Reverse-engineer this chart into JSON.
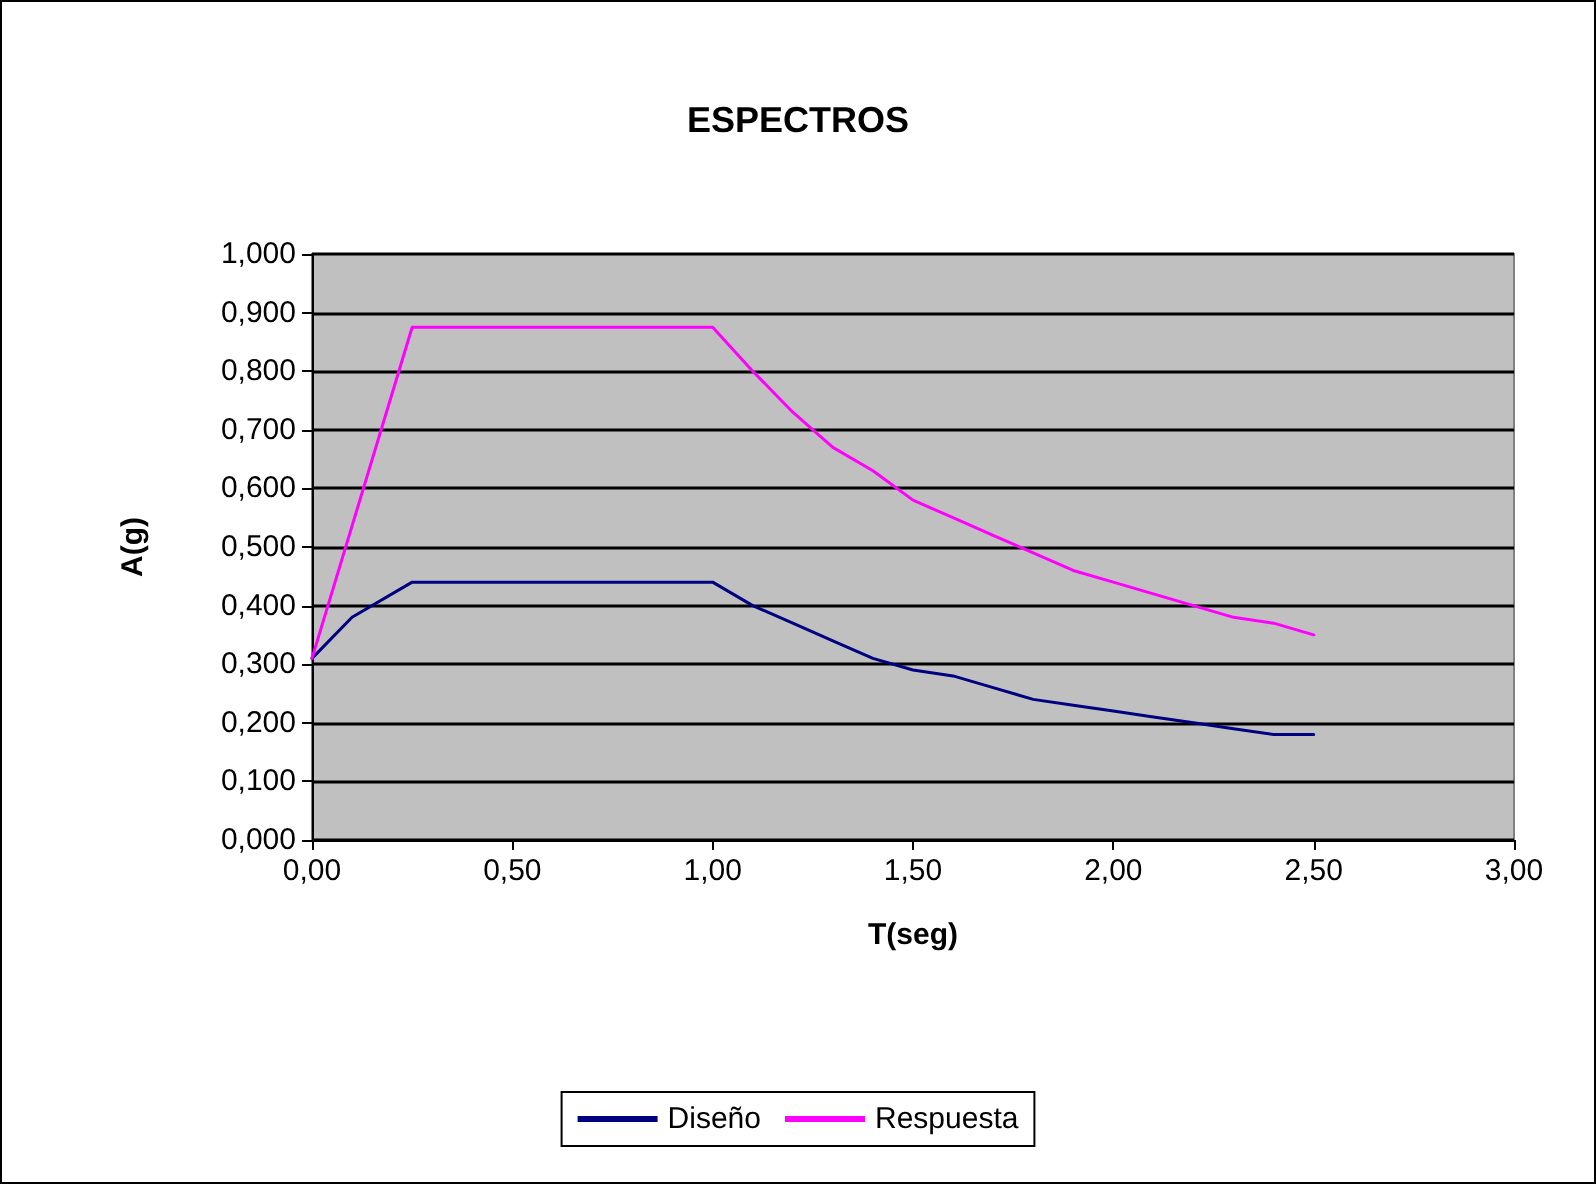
{
  "chart_data": {
    "type": "line",
    "title": "ESPECTROS",
    "xlabel": "T(seg)",
    "ylabel": "A(g)",
    "x": [
      0,
      0.1,
      0.25,
      1.0,
      1.1,
      1.2,
      1.3,
      1.4,
      1.5,
      1.6,
      1.7,
      1.8,
      1.9,
      2.0,
      2.1,
      2.2,
      2.3,
      2.4,
      2.5
    ],
    "series": [
      {
        "name": "Diseño",
        "color": "#000080",
        "values": [
          0.31,
          0.38,
          0.44,
          0.44,
          0.4,
          0.37,
          0.34,
          0.31,
          0.29,
          0.28,
          0.26,
          0.24,
          0.23,
          0.22,
          0.21,
          0.2,
          0.19,
          0.18,
          0.18
        ]
      },
      {
        "name": "Respuesta",
        "color": "#ff00ff",
        "x": [
          0,
          0.25,
          1.0,
          1.1,
          1.2,
          1.3,
          1.4,
          1.5,
          1.6,
          1.7,
          1.8,
          1.9,
          2.0,
          2.1,
          2.2,
          2.3,
          2.4,
          2.5
        ],
        "values": [
          0.31,
          0.875,
          0.875,
          0.8,
          0.73,
          0.67,
          0.63,
          0.58,
          0.55,
          0.52,
          0.49,
          0.46,
          0.44,
          0.42,
          0.4,
          0.38,
          0.37,
          0.35
        ]
      }
    ],
    "xlim": [
      0,
      3
    ],
    "xticks": [
      {
        "value": 0,
        "label": "0,00"
      },
      {
        "value": 0.5,
        "label": "0,50"
      },
      {
        "value": 1,
        "label": "1,00"
      },
      {
        "value": 1.5,
        "label": "1,50"
      },
      {
        "value": 2,
        "label": "2,00"
      },
      {
        "value": 2.5,
        "label": "2,50"
      },
      {
        "value": 3,
        "label": "3,00"
      }
    ],
    "ylim": [
      0,
      1
    ],
    "yticks": [
      {
        "value": 0,
        "label": "0,000"
      },
      {
        "value": 0.1,
        "label": "0,100"
      },
      {
        "value": 0.2,
        "label": "0,200"
      },
      {
        "value": 0.3,
        "label": "0,300"
      },
      {
        "value": 0.4,
        "label": "0,400"
      },
      {
        "value": 0.5,
        "label": "0,500"
      },
      {
        "value": 0.6,
        "label": "0,600"
      },
      {
        "value": 0.7,
        "label": "0,700"
      },
      {
        "value": 0.8,
        "label": "0,800"
      },
      {
        "value": 0.9,
        "label": "0,900"
      },
      {
        "value": 1,
        "label": "1,000"
      }
    ],
    "grid": "y",
    "legend": "bottom",
    "marker": "none",
    "line_style": "solid"
  }
}
